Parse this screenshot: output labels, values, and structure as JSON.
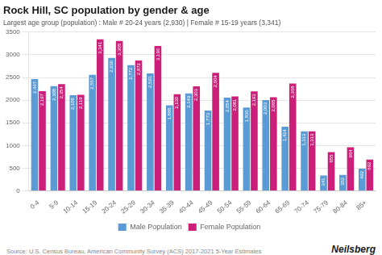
{
  "chart_data": {
    "type": "bar",
    "title": "Rock Hill, SC population by gender & age",
    "subtitle": "Largest age group (population) : Male # 20-24 years (2,930) | Female # 15-19 years (3,341)",
    "annotations": [
      "Source: U.S. Census Bureau, American Community Survey (ACS) 2017-2021 5-Year Estimates",
      "Neilsberg"
    ],
    "categories": [
      "0-4",
      "5-9",
      "10-14",
      "15-19",
      "20-24",
      "25-29",
      "30-34",
      "35-39",
      "40-44",
      "45-49",
      "50-54",
      "55-59",
      "60-64",
      "65-69",
      "70-74",
      "75-79",
      "80-84",
      "85+"
    ],
    "series": [
      {
        "name": "Male Population",
        "color": "#5B9BD5",
        "values": [
          2467,
          2308,
          2108,
          2557,
          2930,
          2772,
          2591,
          1888,
          2149,
          1773,
          2054,
          1836,
          2003,
          1414,
          1313,
          341,
          352,
          492
        ],
        "value_labels": [
          "2,467",
          "2,308",
          "2,108",
          "2,557",
          "2,930",
          "2,772",
          "2,591",
          "1,888",
          "2,149",
          "1,773",
          "2,054",
          "1,836",
          "2,003",
          "1,414",
          "1,313",
          "341",
          "352",
          "492"
        ]
      },
      {
        "name": "Female Population",
        "color": "#CC1F7A",
        "values": [
          2197,
          2354,
          2119,
          3341,
          3305,
          2872,
          3196,
          2130,
          2303,
          2604,
          2081,
          2193,
          2065,
          2368,
          1313,
          855,
          964,
          692
        ],
        "value_labels": [
          "2,197",
          "2,354",
          "2,119",
          "3,341",
          "3,305",
          "2,872",
          "3,196",
          "2,130",
          "2,303",
          "2,604",
          "2,081",
          "2,193",
          "2,065",
          "2,368",
          "1,313",
          "855",
          "964",
          "692"
        ]
      }
    ],
    "ylim": [
      0,
      3500
    ],
    "yticks": [
      0,
      500,
      1000,
      1500,
      2000,
      2500,
      3000,
      3500
    ],
    "grid": true,
    "legend": "bottom",
    "data_labels": true
  }
}
